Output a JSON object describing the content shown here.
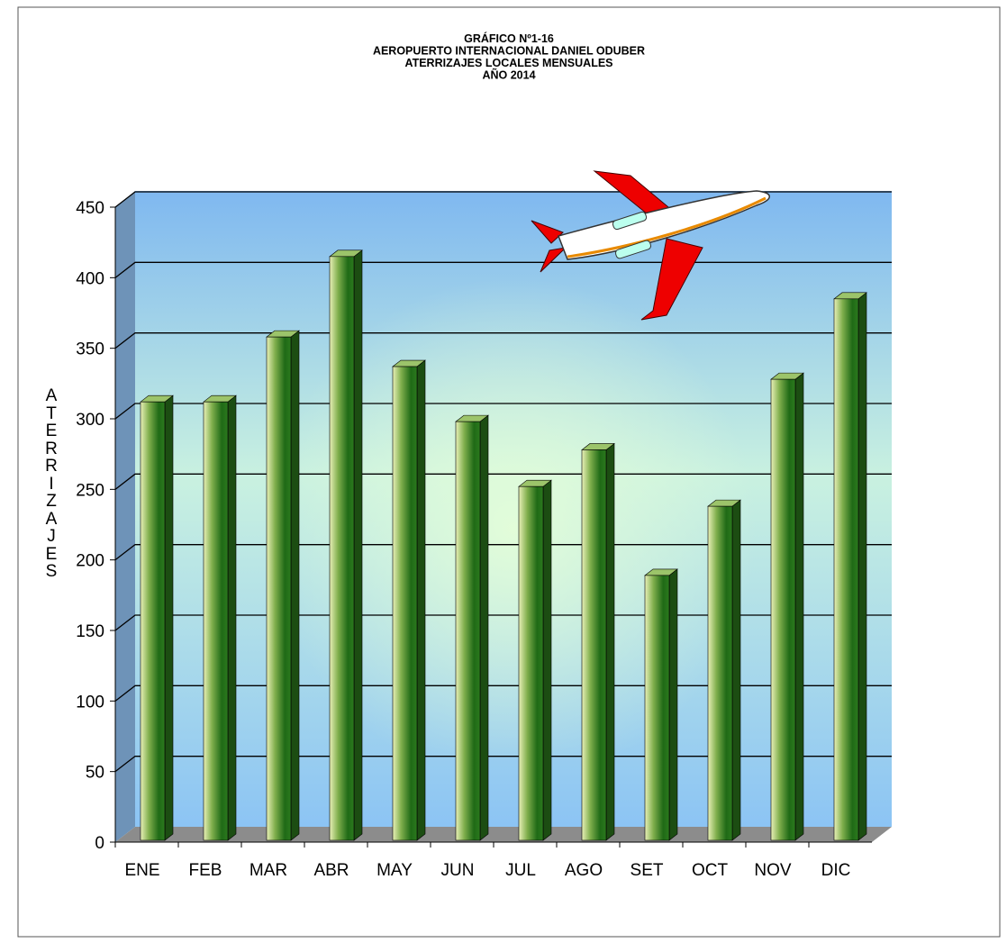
{
  "chart_data": {
    "type": "bar",
    "title": [
      "GRÁFICO Nº1-16",
      "AEROPUERTO INTERNACIONAL DANIEL ODUBER",
      "ATERRIZAJES LOCALES MENSUALES",
      "AÑO 2014"
    ],
    "y_label": "ATERRIZAJES",
    "categories": [
      "ENE",
      "FEB",
      "MAR",
      "ABR",
      "MAY",
      "JUN",
      "JUL",
      "AGO",
      "SET",
      "OCT",
      "NOV",
      "DIC"
    ],
    "values": [
      312,
      312,
      358,
      415,
      337,
      298,
      252,
      278,
      189,
      238,
      328,
      385
    ],
    "color": "#2e7d1e",
    "ylim": [
      0,
      450
    ],
    "yticks": [
      0,
      50,
      100,
      150,
      200,
      250,
      300,
      350,
      400,
      450
    ],
    "grid": true
  }
}
